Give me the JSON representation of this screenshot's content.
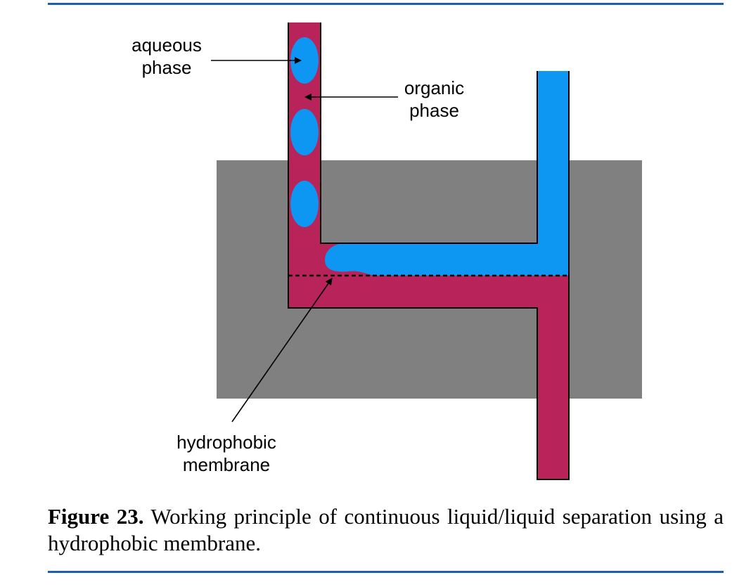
{
  "labels": {
    "aqueous": "aqueous phase",
    "organic": "organic phase",
    "membrane": "hydrophobic membrane"
  },
  "caption": {
    "number": "Figure 23.",
    "text": "Working principle of continuous liquid/liquid separation using a hydrophobic membrane."
  },
  "colors": {
    "rule": "#1f5fa8",
    "block": "#808080",
    "organic_phase": "#b8245a",
    "aqueous_phase": "#0d96f2",
    "outline": "#000000"
  }
}
